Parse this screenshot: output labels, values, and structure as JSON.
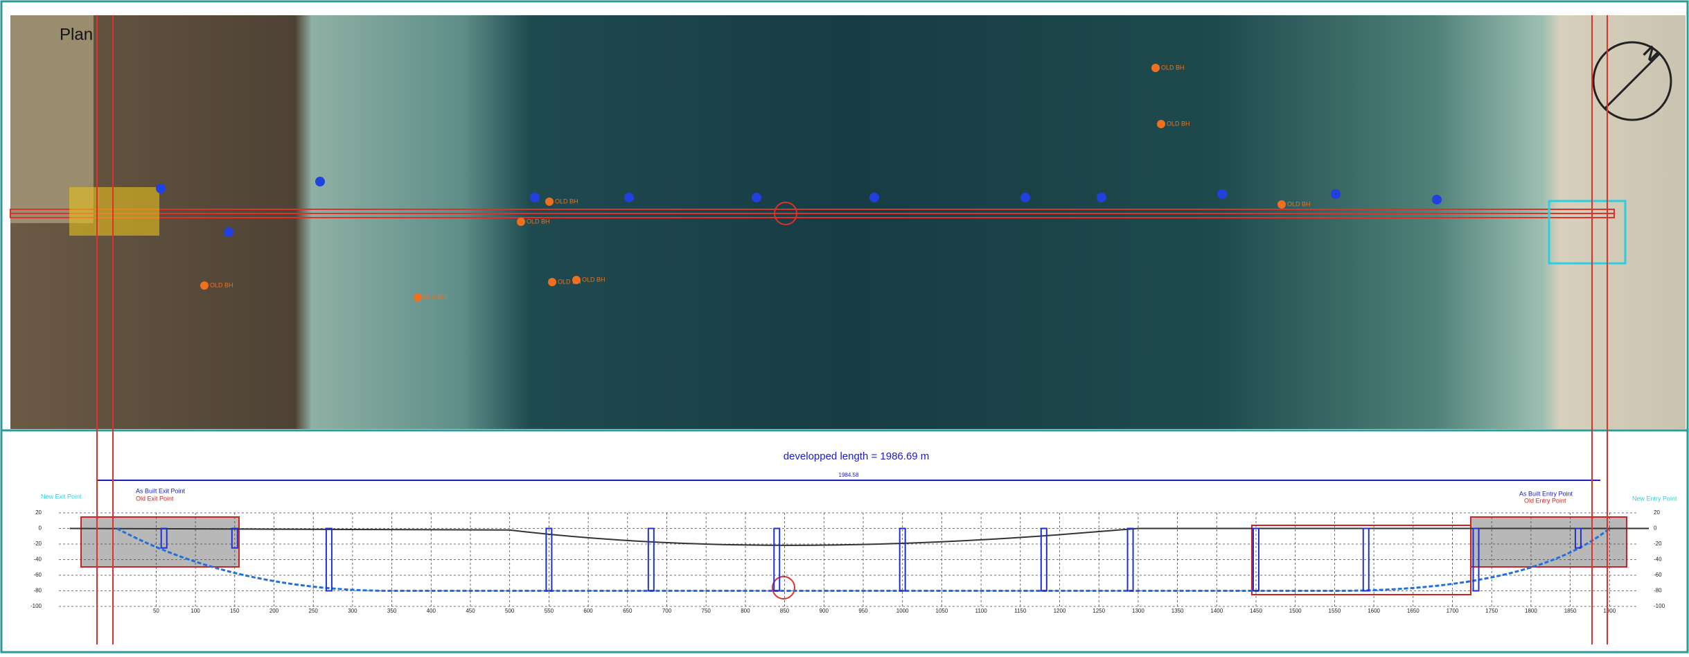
{
  "plan": {
    "title": "Plan",
    "north": "N",
    "borehole_labels": [
      "OLD BH",
      "OLD BH",
      "OLD BH",
      "OLD BH",
      "OLD BH",
      "OLD BH",
      "OLD BH",
      "OLD BH",
      "OLD BH"
    ]
  },
  "profile": {
    "title": "developped length = 1986.69 m",
    "dimension": "1984.58",
    "points": {
      "new_exit": "New Exit Point",
      "as_built_exit": "As Built Exit Point",
      "old_exit": "Old Exit Point",
      "as_built_entry": "As Built Entry Point",
      "old_entry": "Old Entry Point",
      "new_entry": "New Entry Point"
    },
    "chainage_ticks": [
      50,
      100,
      150,
      200,
      250,
      300,
      350,
      400,
      450,
      500,
      550,
      600,
      650,
      700,
      750,
      800,
      850,
      900,
      950,
      1000,
      1050,
      1100,
      1150,
      1200,
      1250,
      1300,
      1350,
      1400,
      1450,
      1500,
      1550,
      1600,
      1650,
      1700,
      1750,
      1800,
      1850,
      1900
    ],
    "depth_ticks": [
      20,
      0,
      -20,
      -40,
      -60,
      -80,
      -100
    ]
  }
}
